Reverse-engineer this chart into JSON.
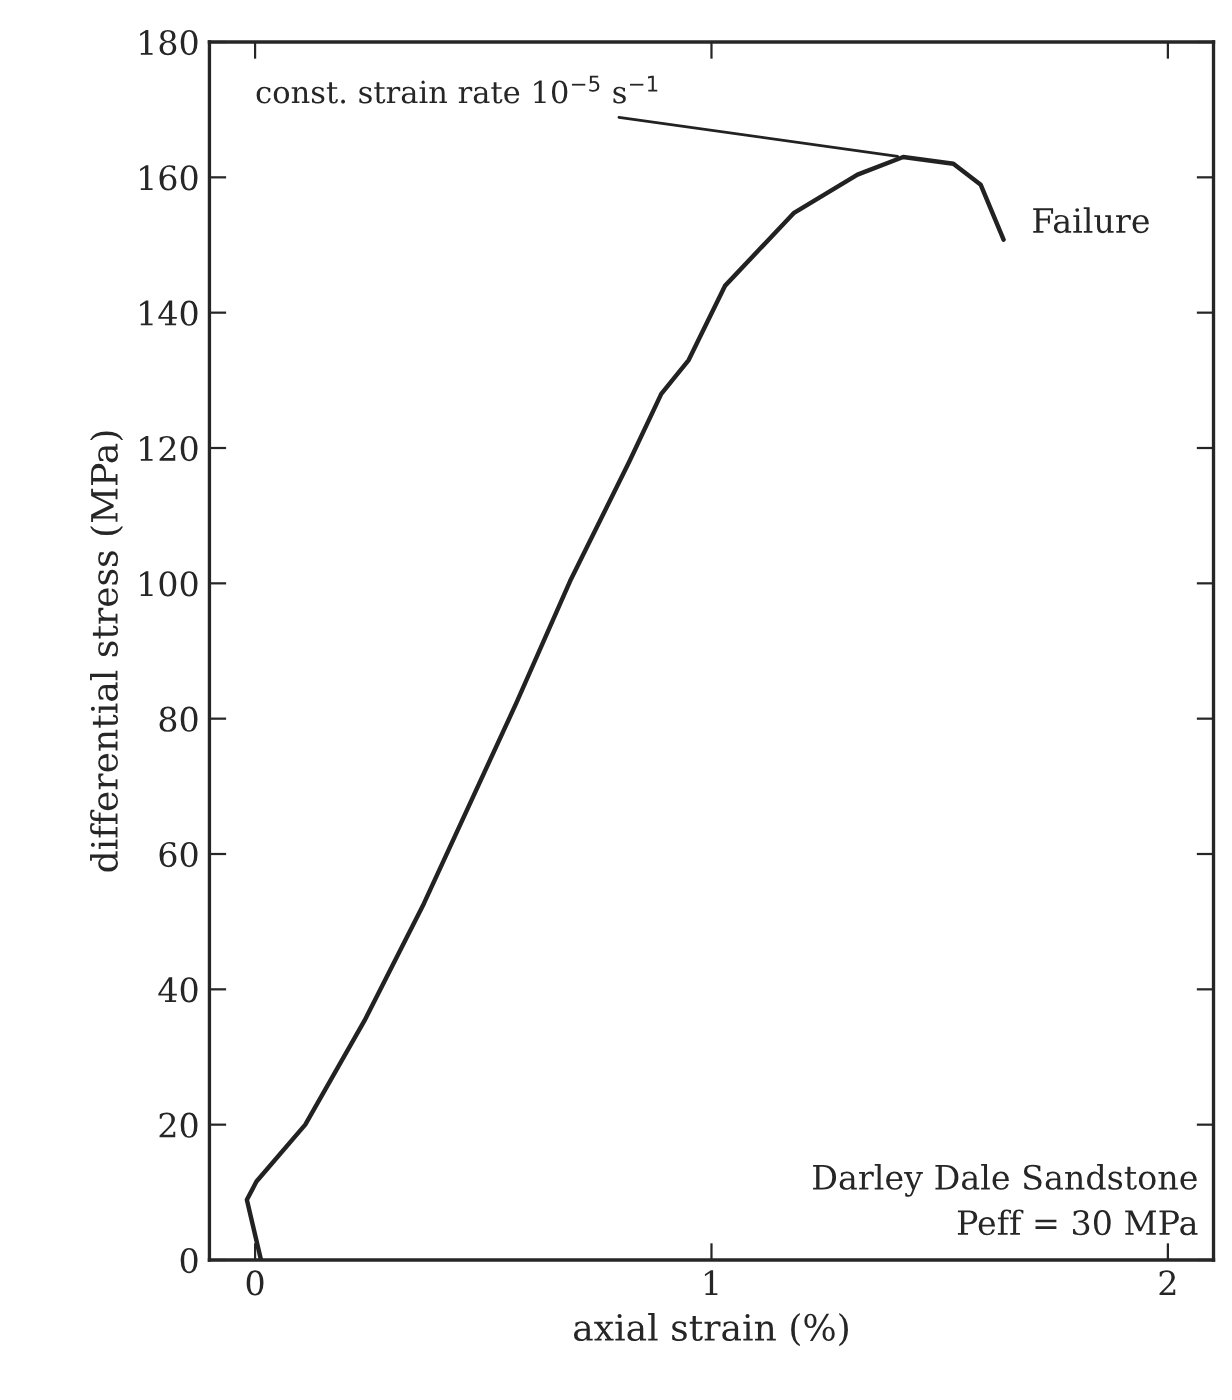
{
  "chart_data": {
    "type": "line",
    "xlabel": "axial strain (%)",
    "ylabel": "differential stress (MPa)",
    "xlim": [
      -0.1,
      2.1
    ],
    "xticks": [
      0,
      1,
      2
    ],
    "ylim": [
      0,
      180
    ],
    "yticks": [
      0,
      20,
      40,
      60,
      80,
      100,
      120,
      140,
      160,
      180
    ],
    "grid": false,
    "marker": "none",
    "line_style": "solid",
    "series": [
      {
        "color": "#222222",
        "x": [
          0.013,
          -0.018,
          0.003,
          0.11,
          0.24,
          0.37,
          0.573,
          0.69,
          0.82,
          0.89,
          0.95,
          1.03,
          1.18,
          1.32,
          1.42,
          1.53,
          1.59,
          1.64
        ],
        "values": [
          0,
          8.9,
          11.6,
          20,
          35.4,
          52.7,
          82.4,
          100.3,
          118,
          128,
          133,
          144,
          154.7,
          160.4,
          163,
          162,
          158.9,
          150.8
        ]
      }
    ],
    "annotations": [
      {
        "text": "const. strain rate 10$^{−5}$ s$^{−1}$",
        "x": 1.42,
        "y": 163
      },
      {
        "text": "Failure",
        "x": 1.64,
        "y": 150.8
      },
      "Darley Dale Sandstone\nPeff = 30 MPa"
    ]
  }
}
